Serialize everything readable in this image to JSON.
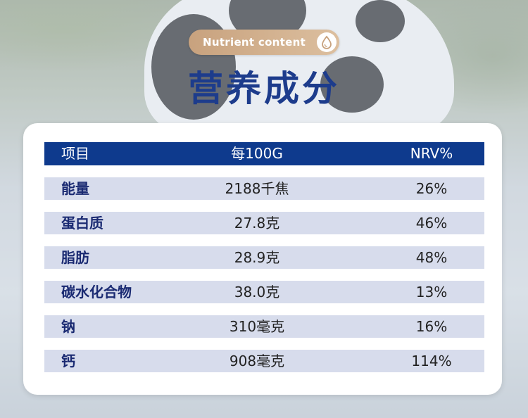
{
  "badge": {
    "label": "Nutrient content",
    "icon": "milk-drop-icon"
  },
  "title": "营养成分",
  "table": {
    "headers": [
      "项目",
      "每100G",
      "NRV%"
    ],
    "rows": [
      {
        "item": "能量",
        "per100g": "2188千焦",
        "nrv": "26%"
      },
      {
        "item": "蛋白质",
        "per100g": "27.8克",
        "nrv": "46%"
      },
      {
        "item": "脂肪",
        "per100g": "28.9克",
        "nrv": "48%"
      },
      {
        "item": "碳水化合物",
        "per100g": "38.0克",
        "nrv": "13%"
      },
      {
        "item": "钠",
        "per100g": "310毫克",
        "nrv": "16%"
      },
      {
        "item": "钙",
        "per100g": "908毫克",
        "nrv": "114%"
      }
    ]
  },
  "colors": {
    "title": "#1d3c8c",
    "header_bg": "#0e3a8d",
    "row_bg": "#d7dcec",
    "badge_bg": "#c8a27e"
  }
}
